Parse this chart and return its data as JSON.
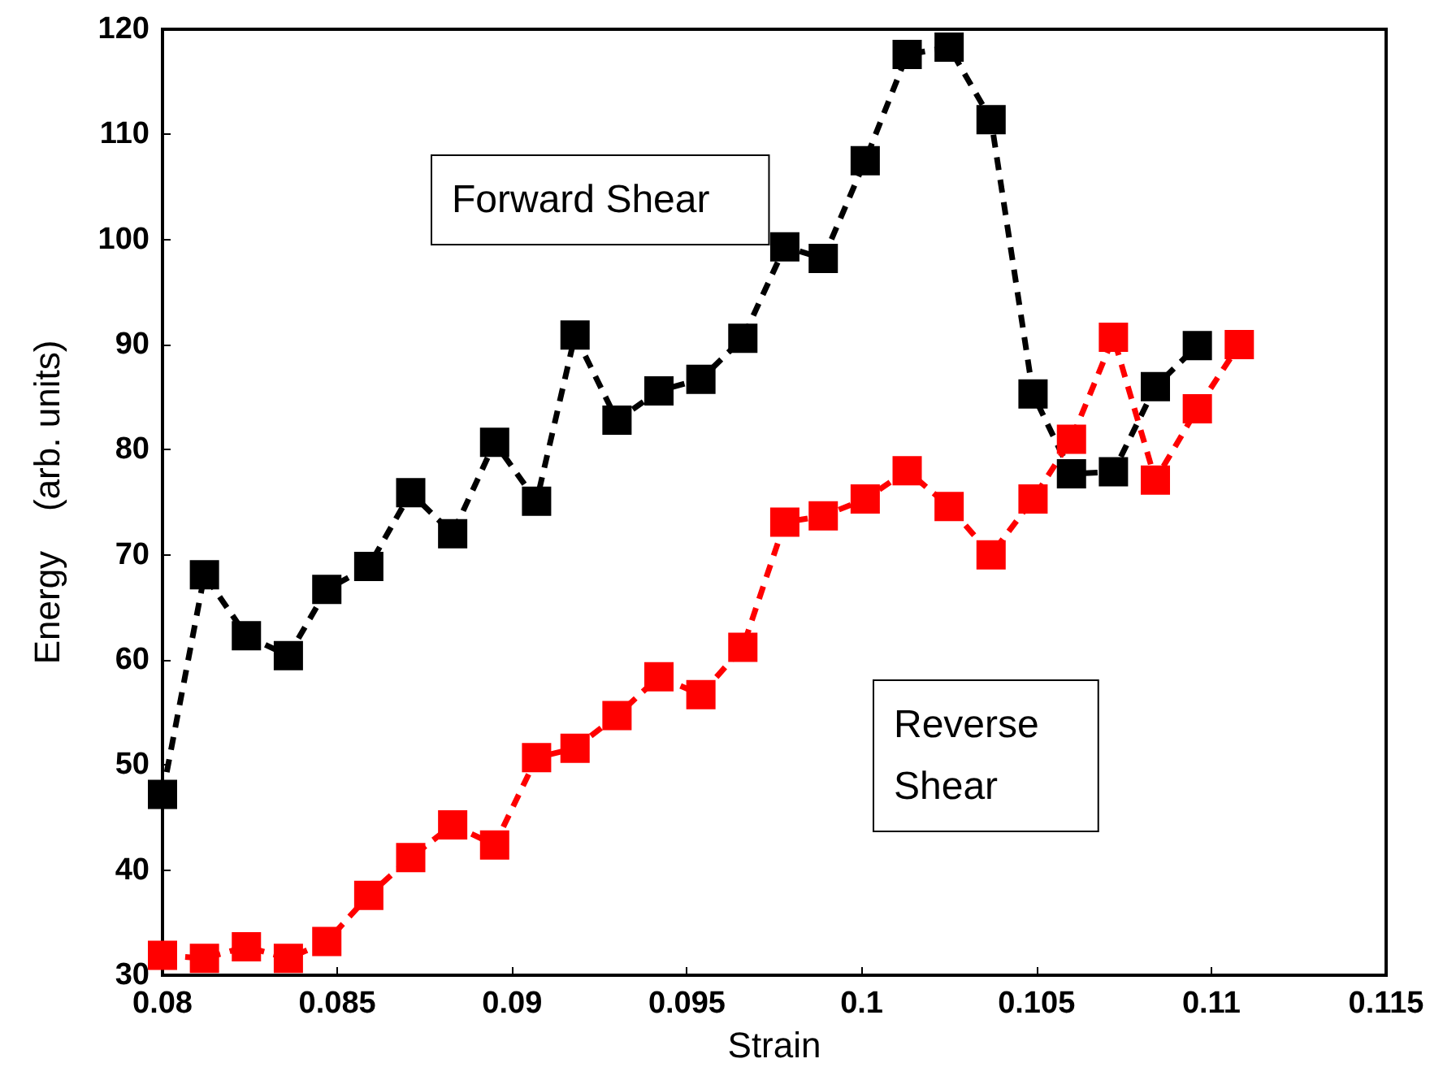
{
  "chart_data": {
    "type": "line",
    "xlabel": "Strain",
    "ylabel": "Energy    (arb. units)",
    "annotations": [
      "Forward Shear",
      "Reverse\nShear"
    ],
    "series": [
      {
        "name": null,
        "color": "#000000",
        "x": [
          0.08,
          0.0812,
          0.0824,
          0.0836,
          0.0847,
          0.0859,
          0.0871,
          0.0883,
          0.0895,
          0.0907,
          0.0918,
          0.093,
          0.0942,
          0.0954,
          0.0966,
          0.0978,
          0.0989,
          0.1001,
          0.1013,
          0.1025,
          0.1037,
          0.1049,
          0.106,
          0.1072,
          0.1084,
          0.1096
        ],
        "values": [
          47.2,
          68.1,
          62.3,
          60.4,
          66.7,
          68.9,
          75.9,
          72.0,
          80.7,
          75.1,
          90.9,
          82.8,
          85.6,
          86.7,
          90.6,
          99.3,
          98.2,
          107.5,
          117.6,
          118.3,
          111.4,
          85.3,
          77.7,
          77.9,
          86.0,
          89.9
        ]
      },
      {
        "name": null,
        "color": "#ff0000",
        "x": [
          0.08,
          0.0812,
          0.0824,
          0.0836,
          0.0847,
          0.0859,
          0.0871,
          0.0883,
          0.0895,
          0.0907,
          0.0918,
          0.093,
          0.0942,
          0.0954,
          0.0966,
          0.0978,
          0.0989,
          0.1001,
          0.1013,
          0.1025,
          0.1037,
          0.1049,
          0.106,
          0.1072,
          0.1084,
          0.1096,
          0.1108
        ],
        "values": [
          31.9,
          31.6,
          32.7,
          31.6,
          33.2,
          37.6,
          41.2,
          44.3,
          42.4,
          50.7,
          51.6,
          54.7,
          58.4,
          56.7,
          61.2,
          73.1,
          73.7,
          75.3,
          78.0,
          74.6,
          70.0,
          75.3,
          81.0,
          90.7,
          77.1,
          83.9,
          90.0
        ]
      }
    ],
    "xlim": [
      0.08,
      0.115
    ],
    "xticks": [
      0.08,
      0.085,
      0.09,
      0.095,
      0.1,
      0.105,
      0.11,
      0.115
    ],
    "ylim": [
      30,
      120
    ],
    "yticks": [
      30,
      40,
      50,
      60,
      70,
      80,
      90,
      100,
      110,
      120
    ],
    "grid": false,
    "marker": "square",
    "line_style": "dashed"
  }
}
